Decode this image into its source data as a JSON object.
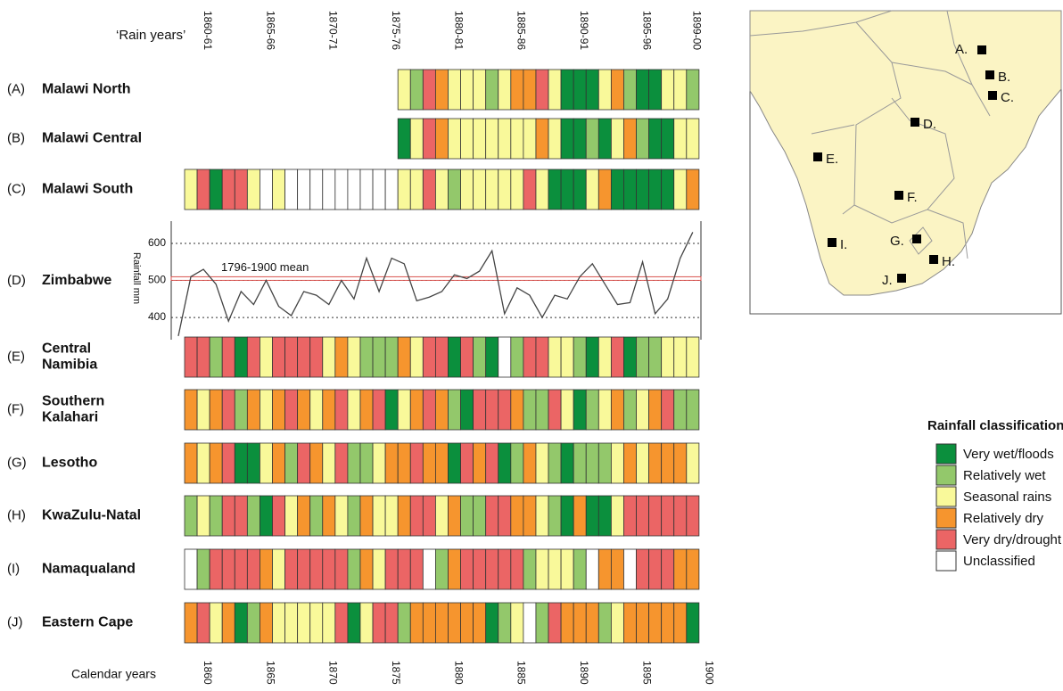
{
  "chart_data": {
    "type": "timeline",
    "rain_years_label": "‘Rain years’",
    "rain_year_ticks": [
      {
        "value": 1860,
        "label": "1860-61"
      },
      {
        "value": 1865,
        "label": "1865-66"
      },
      {
        "value": 1870,
        "label": "1870-71"
      },
      {
        "value": 1875,
        "label": "1875-76"
      },
      {
        "value": 1880,
        "label": "1880-81"
      },
      {
        "value": 1885,
        "label": "1885-86"
      },
      {
        "value": 1890,
        "label": "1890-91"
      },
      {
        "value": 1895,
        "label": "1895-96"
      },
      {
        "value": 1899,
        "label": "1899-00"
      }
    ],
    "calendar_label": "Calendar years",
    "calendar_ticks": [
      1860,
      1865,
      1870,
      1875,
      1880,
      1885,
      1890,
      1895,
      1900
    ],
    "legend_title": "Rainfall classification",
    "classes": [
      {
        "name": "Very wet/floods",
        "color": "#0b8f3d"
      },
      {
        "name": "Relatively wet",
        "color": "#93c86b"
      },
      {
        "name": "Seasonal rains",
        "color": "#f9f99a"
      },
      {
        "name": "Relatively dry",
        "color": "#f6952e"
      },
      {
        "name": "Very dry/drought",
        "color": "#eb6565"
      },
      {
        "name": "Unclassified",
        "color": "#ffffff"
      }
    ],
    "rows": [
      {
        "letter": "(A)",
        "name": [
          "Malawi North"
        ],
        "start": 1876,
        "values": [
          2,
          1,
          4,
          3,
          2,
          2,
          2,
          1,
          2,
          3,
          3,
          4,
          2,
          0,
          0,
          0,
          2,
          3,
          1,
          0,
          0,
          2,
          2,
          1
        ]
      },
      {
        "letter": "(B)",
        "name": [
          "Malawi Central"
        ],
        "start": 1876,
        "values": [
          0,
          2,
          4,
          3,
          2,
          2,
          2,
          2,
          2,
          2,
          2,
          3,
          2,
          0,
          0,
          1,
          0,
          2,
          3,
          1,
          0,
          0,
          2,
          2
        ]
      },
      {
        "letter": "(C)",
        "name": [
          "Malawi South"
        ],
        "start": 1859,
        "values": [
          2,
          4,
          0,
          4,
          4,
          2,
          5,
          2,
          5,
          5,
          5,
          5,
          5,
          5,
          5,
          5,
          5,
          2,
          2,
          4,
          2,
          1,
          2,
          2,
          2,
          2,
          2,
          4,
          2,
          0,
          0,
          0,
          2,
          3,
          0,
          0,
          0,
          0,
          0,
          2,
          3
        ]
      },
      {
        "letter": "(E)",
        "name": [
          "Central",
          "Namibia"
        ],
        "start": 1859,
        "values": [
          4,
          4,
          1,
          4,
          0,
          4,
          2,
          4,
          4,
          4,
          4,
          2,
          3,
          2,
          1,
          1,
          1,
          3,
          2,
          4,
          4,
          0,
          4,
          1,
          0,
          5,
          1,
          4,
          4,
          2,
          2,
          1,
          0,
          2,
          4,
          0,
          1,
          1,
          2,
          2,
          2
        ]
      },
      {
        "letter": "(F)",
        "name": [
          "Southern",
          "Kalahari"
        ],
        "start": 1859,
        "values": [
          3,
          2,
          3,
          4,
          1,
          3,
          2,
          3,
          4,
          3,
          2,
          3,
          4,
          2,
          3,
          4,
          0,
          2,
          3,
          4,
          3,
          1,
          0,
          4,
          4,
          4,
          3,
          1,
          1,
          4,
          2,
          0,
          1,
          2,
          3,
          1,
          2,
          3,
          4,
          1,
          1
        ]
      },
      {
        "letter": "(G)",
        "name": [
          "Lesotho"
        ],
        "start": 1859,
        "values": [
          3,
          2,
          3,
          4,
          0,
          0,
          2,
          3,
          1,
          4,
          3,
          2,
          4,
          1,
          1,
          2,
          3,
          3,
          4,
          3,
          3,
          0,
          4,
          3,
          4,
          0,
          1,
          3,
          2,
          1,
          0,
          1,
          1,
          1,
          2,
          3,
          2,
          3,
          3,
          3,
          2
        ]
      },
      {
        "letter": "(H)",
        "name": [
          "KwaZulu-Natal"
        ],
        "start": 1859,
        "values": [
          1,
          2,
          1,
          4,
          4,
          1,
          0,
          4,
          2,
          3,
          1,
          3,
          2,
          1,
          3,
          2,
          2,
          3,
          4,
          4,
          2,
          3,
          1,
          1,
          4,
          4,
          3,
          3,
          2,
          1,
          0,
          3,
          0,
          0,
          2,
          4,
          4,
          4,
          4,
          4,
          4
        ]
      },
      {
        "letter": "(I)",
        "name": [
          "Namaqualand"
        ],
        "start": 1859,
        "values": [
          5,
          1,
          4,
          4,
          4,
          4,
          3,
          2,
          4,
          4,
          4,
          4,
          4,
          1,
          3,
          2,
          4,
          4,
          4,
          5,
          1,
          3,
          4,
          4,
          4,
          4,
          4,
          1,
          2,
          2,
          2,
          1,
          5,
          3,
          3,
          5,
          4,
          4,
          4,
          3,
          3
        ]
      },
      {
        "letter": "(J)",
        "name": [
          "Eastern Cape"
        ],
        "start": 1859,
        "values": [
          3,
          4,
          2,
          3,
          0,
          1,
          3,
          2,
          2,
          2,
          2,
          2,
          4,
          0,
          2,
          4,
          4,
          1,
          3,
          3,
          3,
          3,
          3,
          3,
          0,
          1,
          2,
          5,
          1,
          4,
          3,
          3,
          3,
          1,
          2,
          3,
          3,
          3,
          3,
          3,
          0
        ]
      }
    ],
    "zimbabwe": {
      "letter": "(D)",
      "name": "Zimbabwe",
      "ylabel": "Rainfall mm",
      "color": "#444444",
      "x": [
        1858,
        1859,
        1860,
        1861,
        1862,
        1863,
        1864,
        1865,
        1866,
        1867,
        1868,
        1869,
        1870,
        1871,
        1872,
        1873,
        1874,
        1875,
        1876,
        1877,
        1878,
        1879,
        1880,
        1881,
        1882,
        1883,
        1884,
        1885,
        1886,
        1887,
        1888,
        1889,
        1890,
        1891,
        1892,
        1893,
        1894,
        1895,
        1896,
        1897,
        1898,
        1899
      ],
      "values": [
        350,
        510,
        530,
        490,
        390,
        470,
        435,
        500,
        430,
        405,
        470,
        460,
        435,
        500,
        450,
        560,
        470,
        560,
        545,
        445,
        455,
        470,
        515,
        505,
        525,
        580,
        410,
        480,
        460,
        400,
        460,
        450,
        510,
        545,
        490,
        435,
        440,
        550,
        410,
        450,
        560,
        630
      ],
      "ylim": [
        340,
        660
      ],
      "yticks": [
        400,
        500,
        600
      ],
      "mean": 505,
      "mean_label": "1796-1900 mean",
      "mean_color": "#d9534f"
    },
    "map": {
      "points": [
        "A.",
        "B.",
        "C.",
        "D.",
        "E.",
        "F.",
        "G.",
        "H.",
        "I.",
        "J."
      ]
    }
  }
}
